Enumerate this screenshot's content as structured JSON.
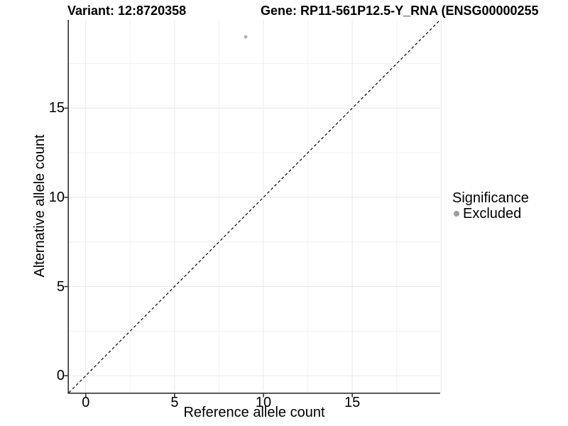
{
  "titles": {
    "variant": "Variant: 12:8720358",
    "gene": "Gene: RP11-561P12.5-Y_RNA (ENSG00000255"
  },
  "chart_data": {
    "type": "scatter",
    "xlabel": "Reference allele count",
    "ylabel": "Alternative allele count",
    "xlim": [
      -0.95,
      19.95
    ],
    "ylim": [
      -0.95,
      19.95
    ],
    "x_tick_labels": [
      "0",
      "5",
      "10",
      "15"
    ],
    "x_ticks": [
      0,
      5,
      10,
      15
    ],
    "y_tick_labels": [
      "0",
      "5",
      "10",
      "15"
    ],
    "y_ticks": [
      0,
      5,
      10,
      15
    ],
    "x_major_grid": [
      0,
      5,
      10,
      15,
      20
    ],
    "y_major_grid": [
      0,
      5,
      10,
      15
    ],
    "x_minor_grid": [
      2.5,
      7.5,
      12.5,
      17.5
    ],
    "y_minor_grid": [
      2.5,
      7.5,
      12.5,
      17.5
    ],
    "grid": true,
    "points": [
      {
        "x": 9,
        "y": 19,
        "series": "Excluded"
      }
    ],
    "reference_line": {
      "type": "abline",
      "slope": 1,
      "intercept": 0,
      "style": "dashed"
    },
    "legend": {
      "title": "Significance",
      "position": "right",
      "entries": [
        {
          "label": "Excluded",
          "color": "#9e9e9e"
        }
      ]
    }
  },
  "colors": {
    "point": "#b4b4b4",
    "legend_key": "#9e9e9e",
    "major_grid": "#e9e9e9",
    "minor_grid": "#f2f2f2",
    "axis_line": "#333333",
    "reference_line": "#1a1a1a",
    "text": "#000000",
    "background": "#ffffff"
  }
}
